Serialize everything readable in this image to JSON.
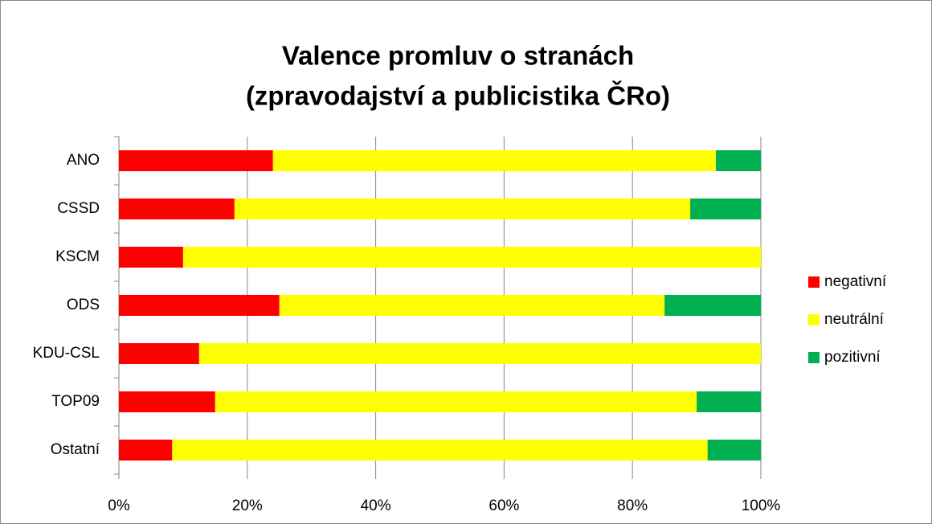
{
  "chart_data": {
    "type": "stacked-bar-horizontal",
    "title": [
      "Valence promluv o stranách",
      "(zpravodajství a publicistika ČRo)"
    ],
    "categories": [
      "ANO",
      "CSSD",
      "KSCM",
      "ODS",
      "KDU-CSL",
      "TOP09",
      "Ostatní"
    ],
    "series": [
      {
        "name": "negativní",
        "color": "#ff0000",
        "values": [
          24,
          18,
          10,
          25,
          12.5,
          15,
          8.3
        ]
      },
      {
        "name": "neutrální",
        "color": "#ffff00",
        "values": [
          69,
          71,
          90,
          60,
          87.5,
          75,
          83.4
        ]
      },
      {
        "name": "pozitivní",
        "color": "#00b050",
        "values": [
          7,
          11,
          0,
          15,
          0,
          10,
          8.3
        ]
      }
    ],
    "xlim": [
      0,
      100
    ],
    "xticks": [
      {
        "value": 0,
        "label": "0%"
      },
      {
        "value": 20,
        "label": "20%"
      },
      {
        "value": 40,
        "label": "40%"
      },
      {
        "value": 60,
        "label": "60%"
      },
      {
        "value": 80,
        "label": "80%"
      },
      {
        "value": 100,
        "label": "100%"
      }
    ],
    "grid": true,
    "legend": "right"
  }
}
